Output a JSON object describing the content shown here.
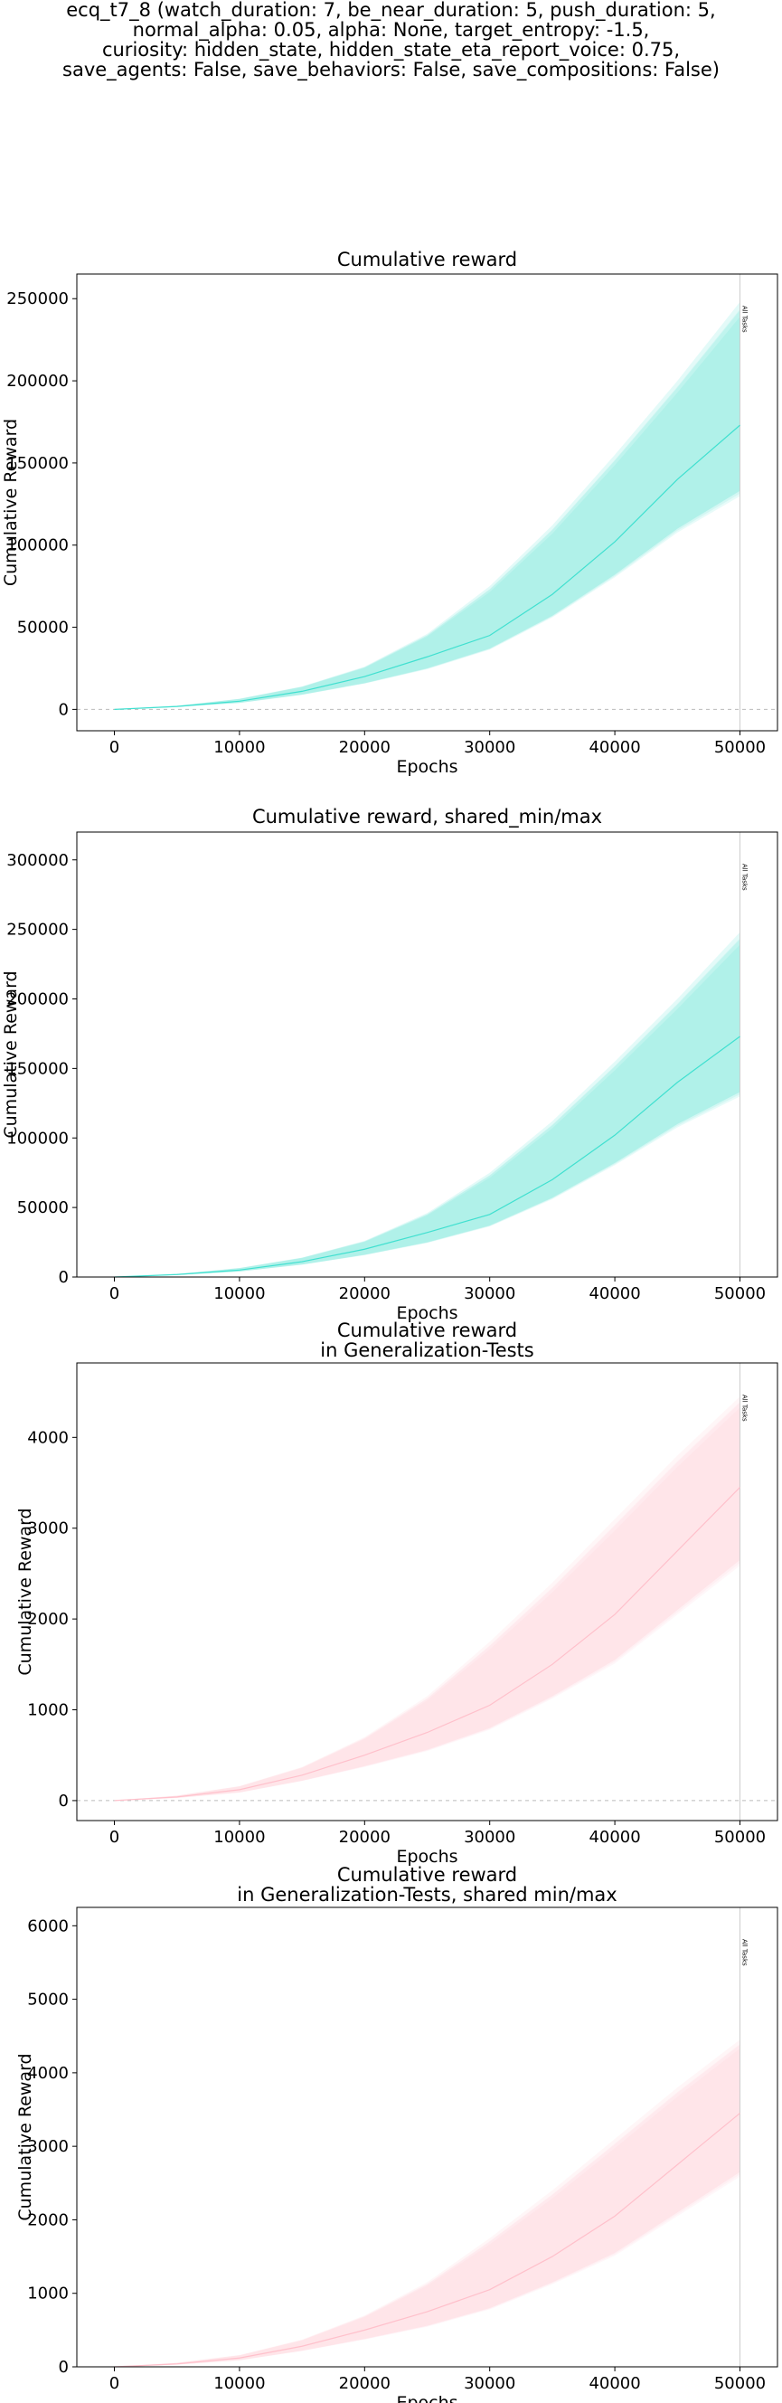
{
  "figure": {
    "suptitle_lines": [
      "ecq_t7_8 (watch_duration: 7, be_near_duration: 5, push_duration: 5,",
      "normal_alpha: 0.05, alpha: None, target_entropy: -1.5,",
      "curiosity: hidden_state, hidden_state_eta_report_voice: 0.75,",
      "save_agents: False, save_behaviors: False, save_compositions: False)"
    ]
  },
  "chart_data": [
    {
      "type": "line",
      "title_lines": [
        "Cumulative reward"
      ],
      "xlabel": "Epochs",
      "ylabel": "Cumulative Reward",
      "xlim": [
        -3000,
        53000
      ],
      "ylim": [
        -13000,
        265000
      ],
      "xticks": [
        0,
        10000,
        20000,
        30000,
        40000,
        50000
      ],
      "yticks": [
        0,
        50000,
        100000,
        150000,
        200000,
        250000
      ],
      "zero_line": true,
      "vline": {
        "x": 50000,
        "label": "All Tasks"
      },
      "color": "#40e0d0",
      "series": [
        {
          "x": [
            0,
            5000,
            10000,
            15000,
            20000,
            25000,
            30000,
            35000,
            40000,
            45000,
            50000
          ],
          "mean": [
            0,
            1800,
            5000,
            11000,
            20000,
            32000,
            45000,
            70000,
            102000,
            140000,
            173000
          ],
          "low": [
            0,
            1500,
            4000,
            9000,
            16000,
            25000,
            37000,
            57000,
            82000,
            110000,
            133000
          ],
          "high": [
            0,
            2200,
            6500,
            14000,
            26000,
            46000,
            75000,
            112000,
            155000,
            200000,
            248000
          ]
        }
      ]
    },
    {
      "type": "line",
      "title_lines": [
        "Cumulative reward, shared_min/max"
      ],
      "xlabel": "Epochs",
      "ylabel": "Cumulative Reward",
      "xlim": [
        -3000,
        53000
      ],
      "ylim": [
        0,
        320000
      ],
      "xticks": [
        0,
        10000,
        20000,
        30000,
        40000,
        50000
      ],
      "yticks": [
        0,
        50000,
        100000,
        150000,
        200000,
        250000,
        300000
      ],
      "zero_line": false,
      "vline": {
        "x": 50000,
        "label": "All Tasks"
      },
      "color": "#40e0d0",
      "series": [
        {
          "x": [
            0,
            5000,
            10000,
            15000,
            20000,
            25000,
            30000,
            35000,
            40000,
            45000,
            50000
          ],
          "mean": [
            0,
            1800,
            5000,
            11000,
            20000,
            32000,
            45000,
            70000,
            102000,
            140000,
            173000
          ],
          "low": [
            0,
            1500,
            4000,
            9000,
            16000,
            25000,
            37000,
            57000,
            82000,
            110000,
            133000
          ],
          "high": [
            0,
            2200,
            6500,
            14000,
            26000,
            46000,
            75000,
            112000,
            155000,
            200000,
            248000
          ]
        }
      ]
    },
    {
      "type": "line",
      "title_lines": [
        "Cumulative reward",
        "in Generalization-Tests"
      ],
      "xlabel": "Epochs",
      "ylabel": "Cumulative Reward",
      "xlim": [
        -3000,
        53000
      ],
      "ylim": [
        -220,
        4820
      ],
      "xticks": [
        0,
        10000,
        20000,
        30000,
        40000,
        50000
      ],
      "yticks": [
        0,
        1000,
        2000,
        3000,
        4000
      ],
      "zero_line": true,
      "vline": {
        "x": 50000,
        "label": "All Tasks"
      },
      "color": "#ffc0cb",
      "series": [
        {
          "x": [
            0,
            5000,
            10000,
            15000,
            20000,
            25000,
            30000,
            35000,
            40000,
            45000,
            50000
          ],
          "mean": [
            0,
            40,
            120,
            280,
            500,
            750,
            1050,
            1500,
            2050,
            2750,
            3450
          ],
          "low": [
            0,
            30,
            90,
            220,
            380,
            560,
            800,
            1150,
            1550,
            2100,
            2650
          ],
          "high": [
            0,
            55,
            160,
            370,
            700,
            1150,
            1750,
            2400,
            3100,
            3800,
            4450
          ]
        }
      ]
    },
    {
      "type": "line",
      "title_lines": [
        "Cumulative reward",
        "in Generalization-Tests, shared min/max"
      ],
      "xlabel": "Epochs",
      "ylabel": "Cumulative Reward",
      "xlim": [
        -3000,
        53000
      ],
      "ylim": [
        0,
        6250
      ],
      "xticks": [
        0,
        10000,
        20000,
        30000,
        40000,
        50000
      ],
      "yticks": [
        0,
        1000,
        2000,
        3000,
        4000,
        5000,
        6000
      ],
      "zero_line": false,
      "vline": {
        "x": 50000,
        "label": "All Tasks"
      },
      "color": "#ffc0cb",
      "series": [
        {
          "x": [
            0,
            5000,
            10000,
            15000,
            20000,
            25000,
            30000,
            35000,
            40000,
            45000,
            50000
          ],
          "mean": [
            0,
            40,
            120,
            280,
            500,
            750,
            1050,
            1500,
            2050,
            2750,
            3450
          ],
          "low": [
            0,
            30,
            90,
            220,
            380,
            560,
            800,
            1150,
            1550,
            2100,
            2650
          ],
          "high": [
            0,
            55,
            160,
            370,
            700,
            1150,
            1750,
            2400,
            3100,
            3800,
            4450
          ]
        }
      ]
    }
  ]
}
